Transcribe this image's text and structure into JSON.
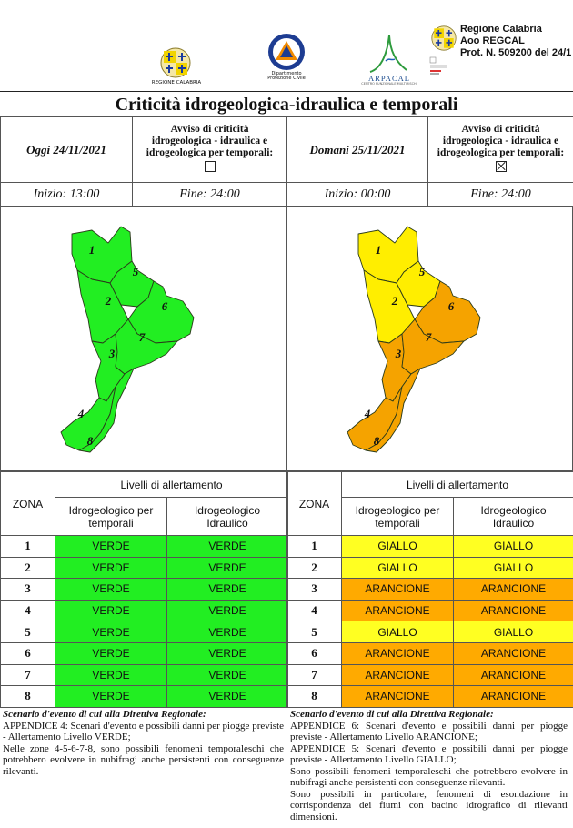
{
  "logos": {
    "regione_caption": "REGIONE CALABRIA",
    "protezione_caption_1": "Dipartimento",
    "protezione_caption_2": "Protezione Civile",
    "arpacal_name": "ARPACAL",
    "arpacal_sub": "CENTRO FUNZIONALE MULTIRISCHI"
  },
  "stamp": {
    "line1": "Regione Calabria",
    "line2": "Aoo REGCAL",
    "line3": "Prot. N. 509200 del 24/1"
  },
  "title": "Criticità idrogeologica-idraulica e temporali",
  "today": {
    "date": "Oggi 24/11/2021",
    "avviso_1": "Avviso di criticità",
    "avviso_2": "idrogeologica - idraulica e",
    "avviso_3": "idrogeologica per temporali:",
    "checked": false,
    "start": "Inizio: 13:00",
    "end": "Fine: 24:00"
  },
  "tomorrow": {
    "date": "Domani 25/11/2021",
    "avviso_1": "Avviso di criticità",
    "avviso_2": "idrogeologica - idraulica e",
    "avviso_3": "idrogeologica per temporali:",
    "checked": true,
    "start": "Inizio: 00:00",
    "end": "Fine: 24:00"
  },
  "colors": {
    "verde": "#22ee22",
    "giallo": "#ffff22",
    "arancione": "#ffaa00",
    "map_giallo": "#ffee00",
    "map_arancione": "#f5a300"
  },
  "zones_labels": [
    "1",
    "2",
    "3",
    "4",
    "5",
    "6",
    "7",
    "8"
  ],
  "levels_table": {
    "header": "Livelli di allertamento",
    "zona": "ZONA",
    "col1_1": "Idrogeologico per",
    "col1_2": "temporali",
    "col2_1": "Idrogeologico",
    "col2_2": "Idraulico"
  },
  "today_levels": [
    {
      "zone": "1",
      "a": "VERDE",
      "b": "VERDE"
    },
    {
      "zone": "2",
      "a": "VERDE",
      "b": "VERDE"
    },
    {
      "zone": "3",
      "a": "VERDE",
      "b": "VERDE"
    },
    {
      "zone": "4",
      "a": "VERDE",
      "b": "VERDE"
    },
    {
      "zone": "5",
      "a": "VERDE",
      "b": "VERDE"
    },
    {
      "zone": "6",
      "a": "VERDE",
      "b": "VERDE"
    },
    {
      "zone": "7",
      "a": "VERDE",
      "b": "VERDE"
    },
    {
      "zone": "8",
      "a": "VERDE",
      "b": "VERDE"
    }
  ],
  "tomorrow_levels": [
    {
      "zone": "1",
      "a": "GIALLO",
      "b": "GIALLO"
    },
    {
      "zone": "2",
      "a": "GIALLO",
      "b": "GIALLO"
    },
    {
      "zone": "3",
      "a": "ARANCIONE",
      "b": "ARANCIONE"
    },
    {
      "zone": "4",
      "a": "ARANCIONE",
      "b": "ARANCIONE"
    },
    {
      "zone": "5",
      "a": "GIALLO",
      "b": "GIALLO"
    },
    {
      "zone": "6",
      "a": "ARANCIONE",
      "b": "ARANCIONE"
    },
    {
      "zone": "7",
      "a": "ARANCIONE",
      "b": "ARANCIONE"
    },
    {
      "zone": "8",
      "a": "ARANCIONE",
      "b": "ARANCIONE"
    }
  ],
  "scenario_today": {
    "heading": "Scenario d'evento di cui alla Direttiva Regionale:",
    "p1": "APPENDICE 4: Scenari d'evento e possibili danni per piogge previste - Allertamento Livello VERDE;",
    "p2": "Nelle zone 4-5-6-7-8, sono possibili fenomeni temporaleschi che potrebbero evolvere in nubifragi anche persistenti con conseguenze rilevanti."
  },
  "scenario_tomorrow": {
    "heading": "Scenario d'evento di cui alla Direttiva Regionale:",
    "p1": "APPENDICE 6: Scenari d'evento e possibili danni per piogge previste - Allertamento Livello ARANCIONE;",
    "p2": "APPENDICE 5: Scenari d'evento e possibili danni per piogge previste - Allertamento Livello GIALLO;",
    "p3": "Sono possibili fenomeni temporaleschi che potrebbero evolvere in nubifragi anche persistenti con conseguenze rilevanti.",
    "p4": "Sono possibili in particolare, fenomeni di esondazione in corrispondenza dei fiumi con bacino idrografico di rilevanti dimensioni."
  }
}
